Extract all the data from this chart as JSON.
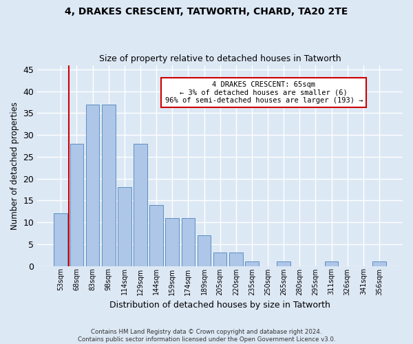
{
  "title1": "4, DRAKES CRESCENT, TATWORTH, CHARD, TA20 2TE",
  "title2": "Size of property relative to detached houses in Tatworth",
  "xlabel": "Distribution of detached houses by size in Tatworth",
  "ylabel": "Number of detached properties",
  "categories": [
    "53sqm",
    "68sqm",
    "83sqm",
    "98sqm",
    "114sqm",
    "129sqm",
    "144sqm",
    "159sqm",
    "174sqm",
    "189sqm",
    "205sqm",
    "220sqm",
    "235sqm",
    "250sqm",
    "265sqm",
    "280sqm",
    "295sqm",
    "311sqm",
    "326sqm",
    "341sqm",
    "356sqm"
  ],
  "values": [
    12,
    28,
    37,
    37,
    18,
    28,
    14,
    11,
    11,
    7,
    3,
    3,
    1,
    0,
    1,
    0,
    0,
    1,
    0,
    0,
    1
  ],
  "bar_color": "#aec6e8",
  "bar_edge_color": "#5a8fc0",
  "ylim": [
    0,
    46
  ],
  "yticks": [
    0,
    5,
    10,
    15,
    20,
    25,
    30,
    35,
    40,
    45
  ],
  "annotation_title": "4 DRAKES CRESCENT: 65sqm",
  "annotation_line1": "← 3% of detached houses are smaller (6)",
  "annotation_line2": "96% of semi-detached houses are larger (193) →",
  "annotation_box_color": "#ffffff",
  "annotation_border_color": "#cc0000",
  "footer1": "Contains HM Land Registry data © Crown copyright and database right 2024.",
  "footer2": "Contains public sector information licensed under the Open Government Licence v3.0.",
  "background_color": "#dde8f5",
  "grid_color": "#ffffff"
}
